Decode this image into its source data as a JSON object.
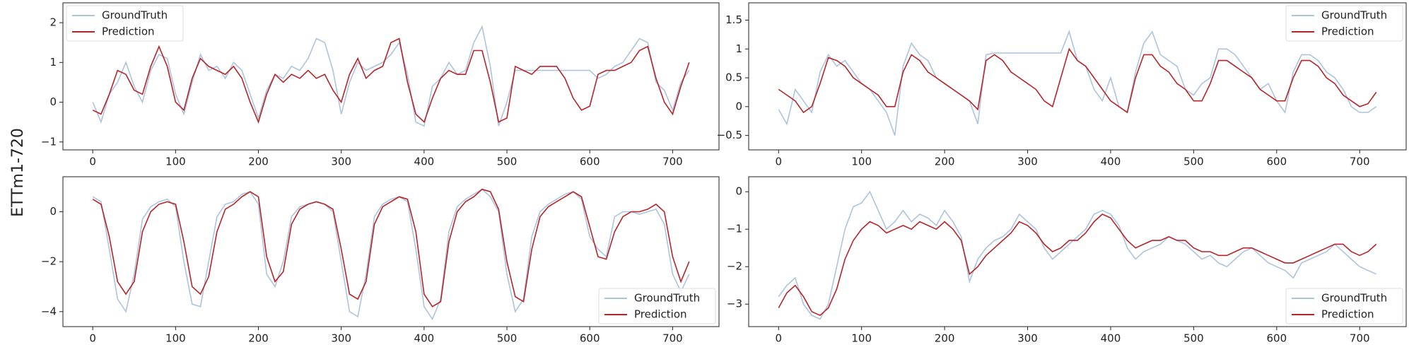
{
  "figure_label": "ETTm1-720",
  "chart_data": [
    {
      "type": "line",
      "legend": "upper left",
      "xlim": [
        -36,
        756
      ],
      "ylim": [
        -1.2,
        2.5
      ],
      "xticks": [
        0,
        100,
        200,
        300,
        400,
        500,
        600,
        700
      ],
      "yticks": [
        {
          "value": -1,
          "label": "−1"
        },
        0,
        1,
        2
      ],
      "x": [
        0,
        10,
        20,
        30,
        40,
        50,
        60,
        70,
        80,
        90,
        100,
        110,
        120,
        130,
        140,
        150,
        160,
        170,
        180,
        190,
        200,
        210,
        220,
        230,
        240,
        250,
        260,
        270,
        280,
        290,
        300,
        310,
        320,
        330,
        340,
        350,
        360,
        370,
        380,
        390,
        400,
        410,
        420,
        430,
        440,
        450,
        460,
        470,
        480,
        490,
        500,
        510,
        520,
        530,
        540,
        550,
        560,
        570,
        580,
        590,
        600,
        610,
        620,
        630,
        640,
        650,
        660,
        670,
        680,
        690,
        700,
        710,
        720
      ],
      "series": [
        {
          "name": "GroundTruth",
          "color": "#aec3dd",
          "values": [
            0,
            -0.5,
            0.2,
            0.5,
            1,
            0.4,
            0,
            0.8,
            1.2,
            1.1,
            0.2,
            -0.3,
            0.5,
            1.2,
            0.8,
            0.9,
            0.6,
            1.0,
            0.8,
            0.2,
            -0.4,
            0.3,
            0.7,
            0.6,
            0.9,
            0.8,
            1.1,
            1.6,
            1.5,
            0.8,
            -0.3,
            0.5,
            1.0,
            0.8,
            0.9,
            1.0,
            1.2,
            1.5,
            0.7,
            -0.5,
            -0.6,
            0.4,
            0.6,
            1.0,
            0.7,
            0.8,
            1.5,
            1.9,
            0.9,
            -0.6,
            0.0,
            0.8,
            0.8,
            0.8,
            0.8,
            0.8,
            0.8,
            0.8,
            0.8,
            0.8,
            0.8,
            0.6,
            0.7,
            0.9,
            1.0,
            1.3,
            1.6,
            1.5,
            0.5,
            0.3,
            -0.2,
            0.5,
            0.8
          ]
        },
        {
          "name": "Prediction",
          "color": "#b5252a",
          "values": [
            -0.2,
            -0.3,
            0.2,
            0.8,
            0.7,
            0.3,
            0.2,
            0.9,
            1.4,
            0.9,
            0.0,
            -0.2,
            0.6,
            1.1,
            0.9,
            0.8,
            0.7,
            0.9,
            0.6,
            0.0,
            -0.5,
            0.2,
            0.7,
            0.5,
            0.7,
            0.6,
            0.8,
            0.6,
            0.7,
            0.3,
            0.0,
            0.7,
            1.1,
            0.6,
            0.8,
            0.9,
            1.5,
            1.6,
            0.5,
            -0.3,
            -0.5,
            0.1,
            0.6,
            0.8,
            0.7,
            0.7,
            1.3,
            1.3,
            0.5,
            -0.5,
            -0.4,
            0.9,
            0.8,
            0.7,
            0.9,
            0.9,
            0.9,
            0.6,
            0.1,
            -0.2,
            -0.1,
            0.7,
            0.8,
            0.8,
            0.9,
            1.0,
            1.3,
            1.4,
            0.6,
            0.0,
            -0.3,
            0.4,
            1.0
          ]
        }
      ]
    },
    {
      "type": "line",
      "legend": "upper right",
      "xlim": [
        -36,
        756
      ],
      "ylim": [
        -0.75,
        1.8
      ],
      "xticks": [
        0,
        100,
        200,
        300,
        400,
        500,
        600,
        700
      ],
      "yticks": [
        {
          "value": -0.5,
          "label": "−0.5"
        },
        0.0,
        0.5,
        1.0,
        1.5
      ],
      "x": [
        0,
        10,
        20,
        30,
        40,
        50,
        60,
        70,
        80,
        90,
        100,
        110,
        120,
        130,
        140,
        150,
        160,
        170,
        180,
        190,
        200,
        210,
        220,
        230,
        240,
        250,
        260,
        270,
        280,
        290,
        300,
        310,
        320,
        330,
        340,
        350,
        360,
        370,
        380,
        390,
        400,
        410,
        420,
        430,
        440,
        450,
        460,
        470,
        480,
        490,
        500,
        510,
        520,
        530,
        540,
        550,
        560,
        570,
        580,
        590,
        600,
        610,
        620,
        630,
        640,
        650,
        660,
        670,
        680,
        690,
        700,
        710,
        720
      ],
      "series": [
        {
          "name": "GroundTruth",
          "color": "#aec3dd",
          "values": [
            -0.05,
            -0.3,
            0.3,
            0.1,
            -0.1,
            0.6,
            0.9,
            0.7,
            0.8,
            0.6,
            0.4,
            0.3,
            0.1,
            -0.1,
            -0.5,
            0.7,
            1.1,
            0.9,
            0.8,
            0.5,
            0.4,
            0.3,
            0.2,
            0.1,
            -0.3,
            0.9,
            0.93,
            0.93,
            0.93,
            0.93,
            0.93,
            0.93,
            0.93,
            0.93,
            0.93,
            1.3,
            0.8,
            0.7,
            0.3,
            0.1,
            0.5,
            0.0,
            -0.1,
            0.6,
            1.1,
            1.3,
            0.9,
            0.8,
            0.7,
            0.3,
            0.2,
            0.4,
            0.5,
            1.0,
            1.0,
            0.9,
            0.7,
            0.5,
            0.3,
            0.4,
            0.1,
            -0.1,
            0.6,
            0.9,
            0.9,
            0.8,
            0.6,
            0.5,
            0.3,
            0.0,
            -0.1,
            -0.1,
            0.0
          ]
        },
        {
          "name": "Prediction",
          "color": "#b5252a",
          "values": [
            0.3,
            0.2,
            0.1,
            -0.1,
            0.0,
            0.4,
            0.85,
            0.8,
            0.7,
            0.5,
            0.4,
            0.3,
            0.2,
            0.0,
            0.0,
            0.6,
            0.9,
            0.8,
            0.6,
            0.5,
            0.4,
            0.3,
            0.2,
            0.1,
            -0.05,
            0.8,
            0.9,
            0.8,
            0.6,
            0.5,
            0.4,
            0.3,
            0.1,
            0.0,
            0.5,
            1.0,
            0.8,
            0.7,
            0.5,
            0.3,
            0.1,
            0.0,
            -0.1,
            0.5,
            0.9,
            0.9,
            0.7,
            0.6,
            0.4,
            0.3,
            0.1,
            0.1,
            0.4,
            0.8,
            0.8,
            0.7,
            0.6,
            0.5,
            0.3,
            0.2,
            0.1,
            0.1,
            0.5,
            0.8,
            0.8,
            0.7,
            0.5,
            0.4,
            0.2,
            0.1,
            0.0,
            0.05,
            0.25
          ]
        }
      ]
    },
    {
      "type": "line",
      "legend": "lower right",
      "xlim": [
        -36,
        756
      ],
      "ylim": [
        -4.6,
        1.4
      ],
      "xticks": [
        0,
        100,
        200,
        300,
        400,
        500,
        600,
        700
      ],
      "yticks": [
        {
          "value": -4,
          "label": "−4"
        },
        {
          "value": -2,
          "label": "−2"
        },
        0
      ],
      "x": [
        0,
        10,
        20,
        30,
        40,
        50,
        60,
        70,
        80,
        90,
        100,
        110,
        120,
        130,
        140,
        150,
        160,
        170,
        180,
        190,
        200,
        210,
        220,
        230,
        240,
        250,
        260,
        270,
        280,
        290,
        300,
        310,
        320,
        330,
        340,
        350,
        360,
        370,
        380,
        390,
        400,
        410,
        420,
        430,
        440,
        450,
        460,
        470,
        480,
        490,
        500,
        510,
        520,
        530,
        540,
        550,
        560,
        570,
        580,
        590,
        600,
        610,
        620,
        630,
        640,
        650,
        660,
        670,
        680,
        690,
        700,
        710,
        720
      ],
      "series": [
        {
          "name": "GroundTruth",
          "color": "#aec3dd",
          "values": [
            0.6,
            0.4,
            -1.5,
            -3.5,
            -4.0,
            -2.5,
            -0.3,
            0.2,
            0.4,
            0.5,
            0.2,
            -2.0,
            -3.7,
            -3.8,
            -2.0,
            -0.2,
            0.3,
            0.4,
            0.7,
            0.8,
            0.3,
            -2.5,
            -3.0,
            -2.0,
            -0.2,
            0.2,
            0.3,
            0.4,
            0.3,
            0.0,
            -2.0,
            -4.0,
            -4.2,
            -2.5,
            -0.2,
            0.3,
            0.5,
            0.6,
            0.4,
            -1.5,
            -3.8,
            -4.3,
            -3.5,
            -0.8,
            0.2,
            0.5,
            0.7,
            0.9,
            0.6,
            0.0,
            -2.5,
            -4.0,
            -3.5,
            -1.0,
            0.0,
            0.3,
            0.5,
            0.7,
            0.8,
            0.5,
            -1.0,
            -1.5,
            -1.8,
            -0.2,
            0.0,
            0.0,
            -0.1,
            0.0,
            0.1,
            -0.5,
            -2.5,
            -3.2,
            -2.5
          ]
        },
        {
          "name": "Prediction",
          "color": "#b5252a",
          "values": [
            0.5,
            0.3,
            -1.0,
            -2.8,
            -3.3,
            -2.8,
            -0.8,
            0.0,
            0.3,
            0.4,
            0.3,
            -1.2,
            -3.0,
            -3.3,
            -2.6,
            -0.8,
            0.1,
            0.3,
            0.6,
            0.8,
            0.6,
            -1.8,
            -2.8,
            -2.4,
            -0.5,
            0.1,
            0.3,
            0.4,
            0.3,
            0.1,
            -1.5,
            -3.3,
            -3.5,
            -2.8,
            -0.5,
            0.2,
            0.4,
            0.6,
            0.5,
            -0.8,
            -3.3,
            -3.8,
            -3.6,
            -1.2,
            0.0,
            0.4,
            0.6,
            0.9,
            0.8,
            0.1,
            -2.0,
            -3.4,
            -3.6,
            -1.5,
            -0.2,
            0.2,
            0.4,
            0.6,
            0.8,
            0.6,
            -0.6,
            -1.8,
            -1.9,
            -0.8,
            -0.2,
            0.0,
            0.0,
            0.1,
            0.3,
            0.0,
            -1.8,
            -2.8,
            -2.0
          ]
        }
      ]
    },
    {
      "type": "line",
      "legend": "lower right",
      "xlim": [
        -36,
        756
      ],
      "ylim": [
        -3.6,
        0.4
      ],
      "xticks": [
        0,
        100,
        200,
        300,
        400,
        500,
        600,
        700
      ],
      "yticks": [
        {
          "value": -3,
          "label": "−3"
        },
        {
          "value": -2,
          "label": "−2"
        },
        {
          "value": -1,
          "label": "−1"
        },
        0
      ],
      "x": [
        0,
        10,
        20,
        30,
        40,
        50,
        60,
        70,
        80,
        90,
        100,
        110,
        120,
        130,
        140,
        150,
        160,
        170,
        180,
        190,
        200,
        210,
        220,
        230,
        240,
        250,
        260,
        270,
        280,
        290,
        300,
        310,
        320,
        330,
        340,
        350,
        360,
        370,
        380,
        390,
        400,
        410,
        420,
        430,
        440,
        450,
        460,
        470,
        480,
        490,
        500,
        510,
        520,
        530,
        540,
        550,
        560,
        570,
        580,
        590,
        600,
        610,
        620,
        630,
        640,
        650,
        660,
        670,
        680,
        690,
        700,
        710,
        720
      ],
      "series": [
        {
          "name": "GroundTruth",
          "color": "#aec3dd",
          "values": [
            -2.8,
            -2.5,
            -2.3,
            -3.0,
            -3.3,
            -3.4,
            -3.0,
            -2.0,
            -1.0,
            -0.4,
            -0.3,
            0.0,
            -0.5,
            -1.0,
            -0.8,
            -0.5,
            -0.8,
            -0.6,
            -0.7,
            -0.9,
            -0.5,
            -0.8,
            -1.2,
            -2.4,
            -1.8,
            -1.5,
            -1.3,
            -1.2,
            -1.0,
            -0.6,
            -0.8,
            -1.0,
            -1.5,
            -1.8,
            -1.6,
            -1.4,
            -1.2,
            -1.0,
            -0.6,
            -0.5,
            -0.6,
            -0.9,
            -1.5,
            -1.8,
            -1.6,
            -1.5,
            -1.4,
            -1.2,
            -1.3,
            -1.4,
            -1.6,
            -1.8,
            -1.7,
            -1.9,
            -2.0,
            -1.8,
            -1.6,
            -1.5,
            -1.7,
            -1.9,
            -2.0,
            -2.1,
            -2.3,
            -1.9,
            -1.8,
            -1.7,
            -1.6,
            -1.4,
            -1.6,
            -1.8,
            -2.0,
            -2.1,
            -2.2
          ]
        },
        {
          "name": "Prediction",
          "color": "#b5252a",
          "values": [
            -3.1,
            -2.7,
            -2.5,
            -2.8,
            -3.2,
            -3.3,
            -3.1,
            -2.6,
            -1.8,
            -1.3,
            -1.0,
            -0.8,
            -0.9,
            -1.1,
            -1.0,
            -0.9,
            -1.0,
            -0.8,
            -0.9,
            -1.0,
            -0.8,
            -1.0,
            -1.3,
            -2.2,
            -2.0,
            -1.7,
            -1.5,
            -1.3,
            -1.1,
            -0.8,
            -0.9,
            -1.1,
            -1.4,
            -1.6,
            -1.5,
            -1.3,
            -1.3,
            -1.1,
            -0.8,
            -0.6,
            -0.7,
            -1.0,
            -1.3,
            -1.5,
            -1.4,
            -1.3,
            -1.3,
            -1.2,
            -1.3,
            -1.3,
            -1.5,
            -1.6,
            -1.6,
            -1.7,
            -1.7,
            -1.6,
            -1.5,
            -1.5,
            -1.6,
            -1.7,
            -1.8,
            -1.9,
            -1.9,
            -1.8,
            -1.7,
            -1.6,
            -1.5,
            -1.4,
            -1.4,
            -1.6,
            -1.7,
            -1.6,
            -1.4
          ]
        }
      ]
    }
  ]
}
